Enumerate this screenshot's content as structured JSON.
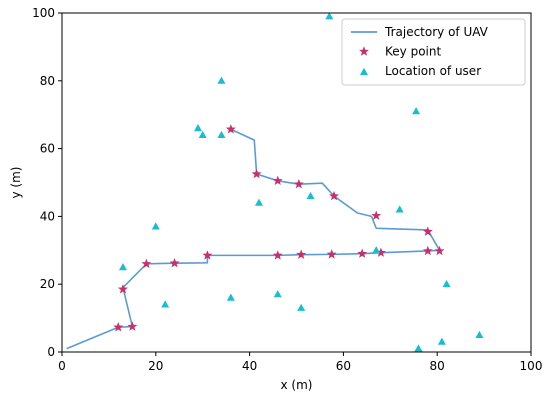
{
  "chart_data": {
    "type": "scatter",
    "xlabel": "x (m)",
    "ylabel": "y (m)",
    "xlim": [
      0,
      100
    ],
    "ylim": [
      0,
      100
    ],
    "xticks": [
      0,
      20,
      40,
      60,
      80,
      100
    ],
    "yticks": [
      0,
      20,
      40,
      60,
      80,
      100
    ],
    "grid": false,
    "legend_position": "top-right",
    "series": [
      {
        "name": "Trajectory of UAV",
        "kind": "line",
        "color": "#5b9bd5",
        "points": [
          [
            1,
            1
          ],
          [
            12,
            7.3
          ],
          [
            15,
            7.5
          ],
          [
            13,
            19
          ],
          [
            18,
            26
          ],
          [
            24,
            26.2
          ],
          [
            31,
            26.3
          ],
          [
            31,
            28.5
          ],
          [
            46,
            28.5
          ],
          [
            51,
            28.7
          ],
          [
            57.5,
            28.8
          ],
          [
            64,
            29
          ],
          [
            68,
            29.3
          ],
          [
            78,
            29.8
          ],
          [
            80.5,
            30
          ],
          [
            78,
            36
          ],
          [
            67,
            36.5
          ],
          [
            66,
            40
          ],
          [
            63,
            41
          ],
          [
            58,
            46
          ],
          [
            55.5,
            49.8
          ],
          [
            50.5,
            49.5
          ],
          [
            46,
            50.5
          ],
          [
            41.5,
            52.5
          ],
          [
            41,
            62.5
          ],
          [
            36,
            65.7
          ]
        ]
      },
      {
        "name": "Key point",
        "kind": "star",
        "color": "#c8306a",
        "points": [
          [
            36,
            65.7
          ],
          [
            41.5,
            52.5
          ],
          [
            46,
            50.5
          ],
          [
            50.5,
            49.5
          ],
          [
            58,
            46
          ],
          [
            67,
            40.2
          ],
          [
            78,
            35.5
          ],
          [
            78,
            29.8
          ],
          [
            80.5,
            29.8
          ],
          [
            68,
            29.3
          ],
          [
            64,
            29
          ],
          [
            57.5,
            28.8
          ],
          [
            51,
            28.7
          ],
          [
            46,
            28.5
          ],
          [
            31,
            28.5
          ],
          [
            24,
            26.2
          ],
          [
            18,
            26
          ],
          [
            13,
            18.5
          ],
          [
            12,
            7.3
          ],
          [
            15,
            7.5
          ]
        ]
      },
      {
        "name": "Location of user",
        "kind": "triangle",
        "color": "#17becf",
        "points": [
          [
            57,
            99
          ],
          [
            34,
            80
          ],
          [
            75.5,
            71
          ],
          [
            29,
            66
          ],
          [
            30,
            64
          ],
          [
            34,
            64
          ],
          [
            42,
            44
          ],
          [
            53,
            46
          ],
          [
            72,
            42
          ],
          [
            20,
            37
          ],
          [
            13,
            25
          ],
          [
            67,
            30
          ],
          [
            82,
            20
          ],
          [
            22,
            14
          ],
          [
            36,
            16
          ],
          [
            46,
            17
          ],
          [
            51,
            13
          ],
          [
            89,
            5
          ],
          [
            81,
            3
          ],
          [
            76,
            1
          ]
        ]
      }
    ]
  }
}
